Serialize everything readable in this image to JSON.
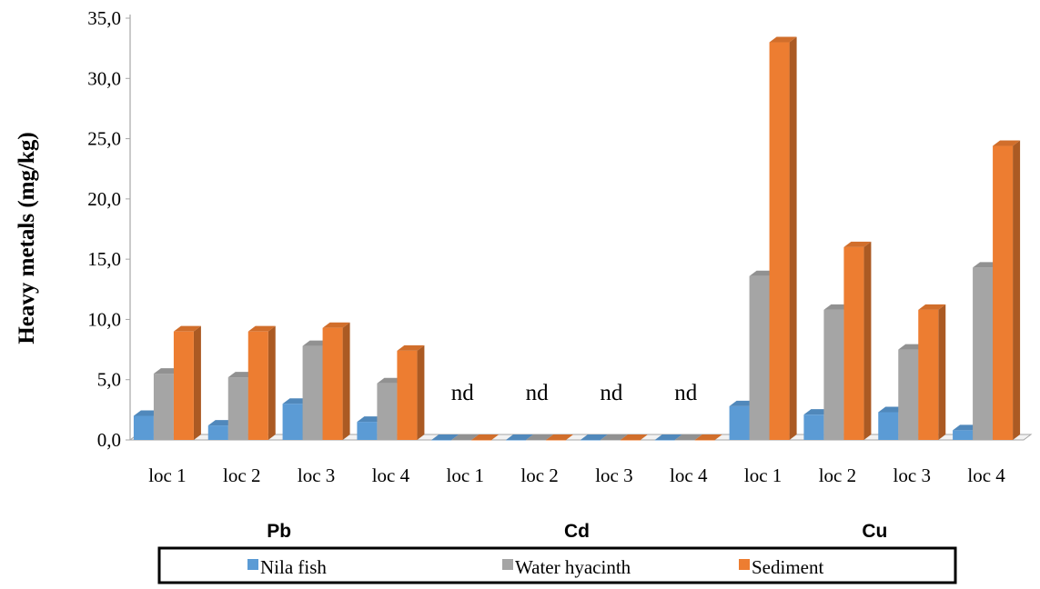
{
  "chart_data": {
    "type": "bar",
    "ylabel": "Heavy metals (mg/kg)",
    "ylim": [
      0,
      35
    ],
    "y_ticks": [
      "0,0",
      "5,0",
      "10,0",
      "15,0",
      "20,0",
      "25,0",
      "30,0",
      "35,0"
    ],
    "groups": [
      {
        "name": "Pb",
        "categories": [
          "loc 1",
          "loc 2",
          "loc 3",
          "loc 4"
        ]
      },
      {
        "name": "Cd",
        "categories": [
          "loc 1",
          "loc 2",
          "loc 3",
          "loc 4"
        ]
      },
      {
        "name": "Cu",
        "categories": [
          "loc 1",
          "loc 2",
          "loc 3",
          "loc 4"
        ]
      }
    ],
    "series": [
      {
        "name": "Nila fish",
        "color": "#5b9bd5",
        "values": [
          2.0,
          1.2,
          3.0,
          1.5,
          0,
          0,
          0,
          0,
          2.8,
          2.1,
          2.3,
          0.8
        ]
      },
      {
        "name": "Water hyacinth",
        "color": "#a5a5a5",
        "values": [
          5.5,
          5.2,
          7.8,
          4.7,
          0,
          0,
          0,
          0,
          13.6,
          10.8,
          7.5,
          14.3
        ]
      },
      {
        "name": "Sediment",
        "color": "#ed7d31",
        "values": [
          9.0,
          9.0,
          9.3,
          7.4,
          0,
          0,
          0,
          0,
          33.0,
          16.0,
          10.8,
          24.4
        ]
      }
    ],
    "annotations": [
      "nd",
      "nd",
      "nd",
      "nd"
    ],
    "legend_position": "bottom",
    "grid": false
  }
}
